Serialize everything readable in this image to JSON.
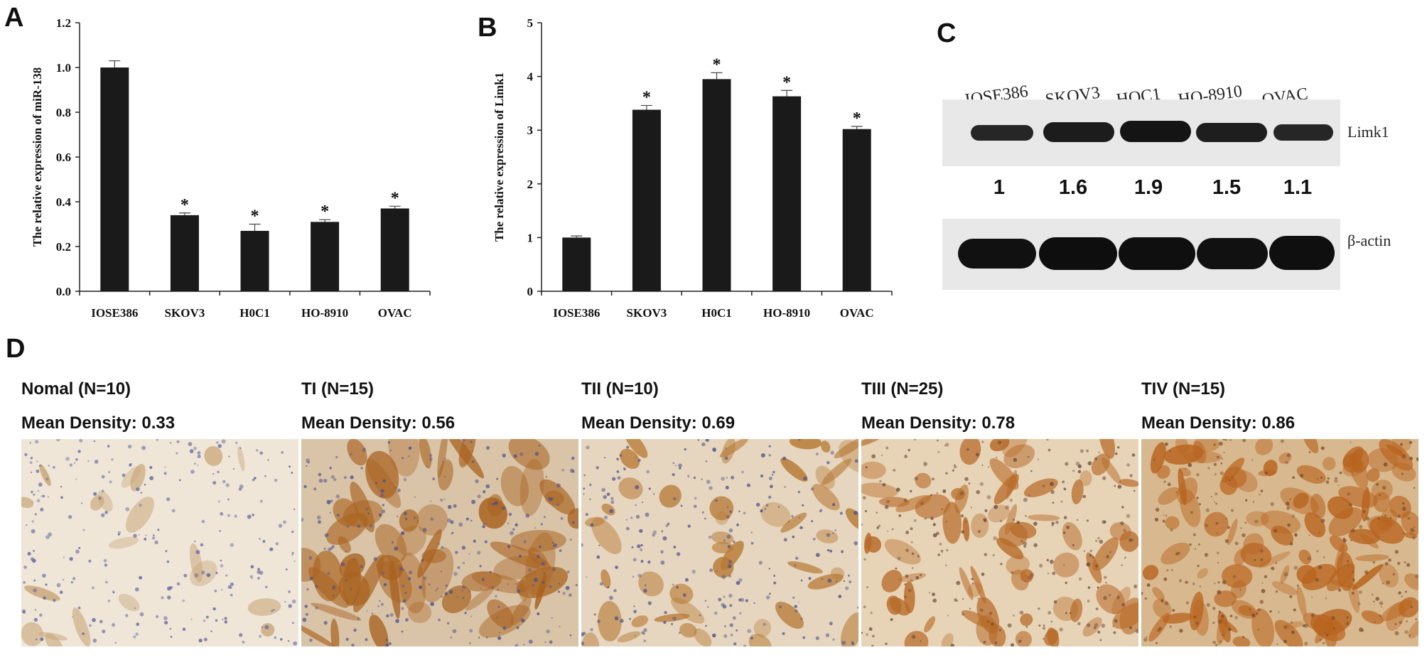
{
  "panels": {
    "a": "A",
    "b": "B",
    "c": "C",
    "d": "D"
  },
  "chart_data": [
    {
      "type": "bar",
      "panel": "A",
      "ylabel": "The relative expression of miR-138",
      "categories": [
        "IOSE386",
        "SKOV3",
        "H0C1",
        "HO-8910",
        "OVAC"
      ],
      "values": [
        1.0,
        0.34,
        0.27,
        0.31,
        0.37
      ],
      "errors": [
        0.03,
        0.01,
        0.03,
        0.01,
        0.01
      ],
      "significance": [
        "",
        "*",
        "*",
        "*",
        "*"
      ],
      "ylim": [
        0,
        1.2
      ],
      "yticks": [
        "0.0",
        "0.2",
        "0.4",
        "0.6",
        "0.8",
        "1.0",
        "1.2"
      ],
      "bar_color": "#1a1a1a"
    },
    {
      "type": "bar",
      "panel": "B",
      "ylabel": "The relative expression of Limk1",
      "categories": [
        "IOSE386",
        "SKOV3",
        "H0C1",
        "HO-8910",
        "OVAC"
      ],
      "values": [
        1.0,
        3.38,
        3.95,
        3.63,
        3.02
      ],
      "errors": [
        0.03,
        0.08,
        0.12,
        0.11,
        0.05
      ],
      "significance": [
        "",
        "*",
        "*",
        "*",
        "*"
      ],
      "ylim": [
        0,
        5
      ],
      "yticks": [
        "0",
        "1",
        "2",
        "3",
        "4",
        "5"
      ],
      "bar_color": "#1a1a1a"
    }
  ],
  "blot": {
    "lanes": [
      "IOSE386",
      "SKOV3",
      "HOC1",
      "HO-8910",
      "OVAC"
    ],
    "top_label": "Limk1",
    "bottom_label": "β-actin",
    "quantification": [
      "1",
      "1.6",
      "1.9",
      "1.5",
      "1.1"
    ]
  },
  "ihc": [
    {
      "title": "Nomal (N=10)",
      "density": "Mean Density: 0.33",
      "stain": "#c9a77a",
      "bg": "#efe6d8",
      "nuclei": "#5b5f9c"
    },
    {
      "title": "TI (N=15)",
      "density": "Mean Density: 0.56",
      "stain": "#a8621f",
      "bg": "#d9c4a8",
      "nuclei": "#4a4f8f"
    },
    {
      "title": "TII (N=10)",
      "density": "Mean Density: 0.69",
      "stain": "#b77a35",
      "bg": "#e6d6bf",
      "nuclei": "#4b4f88"
    },
    {
      "title": "TIII (N=25)",
      "density": "Mean Density: 0.78",
      "stain": "#b76a28",
      "bg": "#e7d3b6",
      "nuclei": "#6a4a3a"
    },
    {
      "title": "TIV (N=15)",
      "density": "Mean Density: 0.86",
      "stain": "#b8641f",
      "bg": "#d8b98f",
      "nuclei": "#7a4a2a"
    }
  ]
}
